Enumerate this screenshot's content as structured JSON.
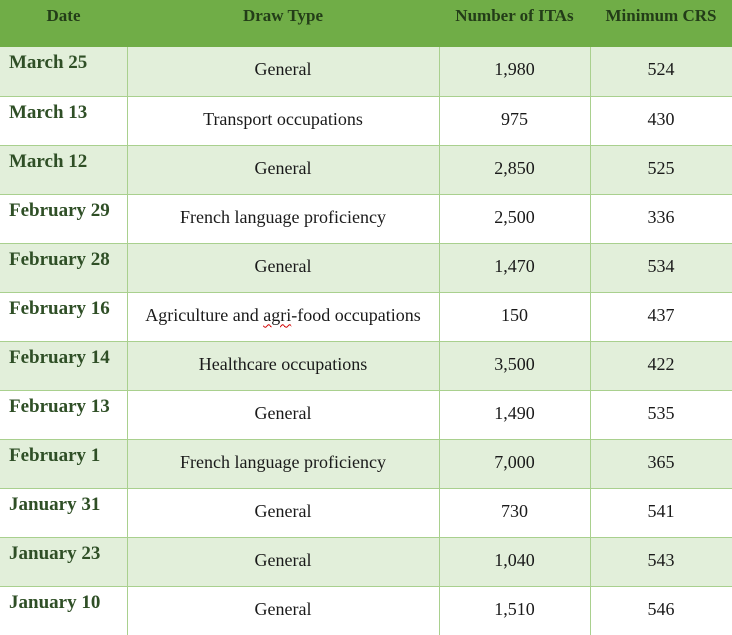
{
  "table": {
    "headers": {
      "date": "Date",
      "draw_type": "Draw Type",
      "itas": "Number of ITAs",
      "min_crs": "Minimum CRS"
    },
    "rows": [
      {
        "date": "March 25",
        "draw_type": "General",
        "itas": "1,980",
        "min_crs": "524"
      },
      {
        "date": "March 13",
        "draw_type": "Transport occupations",
        "itas": "975",
        "min_crs": "430"
      },
      {
        "date": "March 12",
        "draw_type": "General",
        "itas": "2,850",
        "min_crs": "525"
      },
      {
        "date": "February 29",
        "draw_type": "French language proficiency",
        "itas": "2,500",
        "min_crs": "336"
      },
      {
        "date": "February 28",
        "draw_type": "General",
        "itas": "1,470",
        "min_crs": "534"
      },
      {
        "date": "February 16",
        "draw_type_before": "Agriculture and ",
        "draw_type_flagged": "agri",
        "draw_type_after": "-food occupations",
        "itas": "150",
        "min_crs": "437"
      },
      {
        "date": "February 14",
        "draw_type": "Healthcare occupations",
        "itas": "3,500",
        "min_crs": "422"
      },
      {
        "date": "February 13",
        "draw_type": "General",
        "itas": "1,490",
        "min_crs": "535"
      },
      {
        "date": "February 1",
        "draw_type": "French language proficiency",
        "itas": "7,000",
        "min_crs": "365"
      },
      {
        "date": "January 31",
        "draw_type": "General",
        "itas": "730",
        "min_crs": "541"
      },
      {
        "date": "January 23",
        "draw_type": "General",
        "itas": "1,040",
        "min_crs": "543"
      },
      {
        "date": "January 10",
        "draw_type": "General",
        "itas": "1,510",
        "min_crs": "546"
      }
    ]
  },
  "colors": {
    "header_bg": "#70ad47",
    "band_bg": "#e2efda",
    "border": "#a9d08e",
    "date_text": "#2f4f26"
  }
}
